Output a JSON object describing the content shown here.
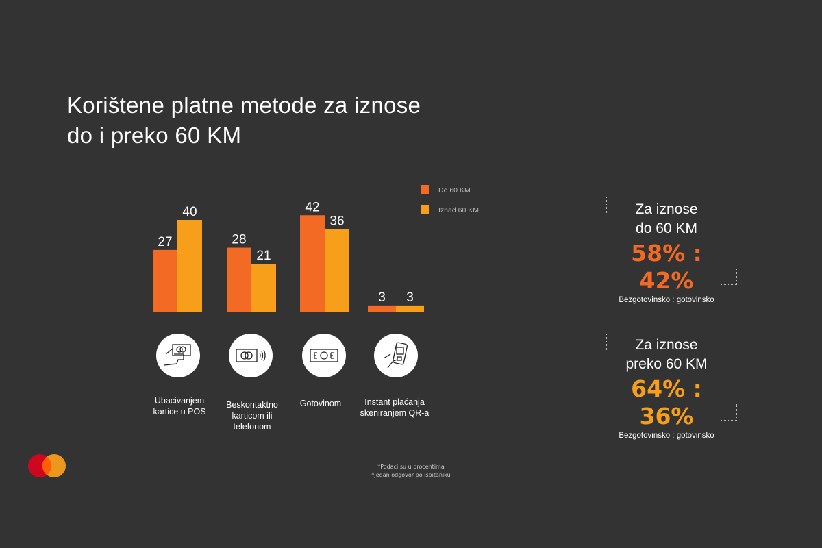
{
  "title_line1": "Korištene platne metode za iznose",
  "title_line2": "do i preko 60 KM",
  "chart_data": {
    "type": "bar",
    "categories": [
      "Ubacivanjem kartice u POS",
      "Beskontaktno karticom ili telefonom",
      "Gotovinom",
      "Instant plaćanja skeniranjem QR-a"
    ],
    "series": [
      {
        "name": "Do  60 KM",
        "values": [
          27,
          28,
          42,
          3
        ],
        "color": "#F26A24"
      },
      {
        "name": "Iznad  60 KM",
        "values": [
          40,
          21,
          36,
          3
        ],
        "color": "#F79E1B"
      }
    ],
    "ylim": [
      0,
      45
    ],
    "legend": "top-right",
    "grid": false
  },
  "labels": [
    [
      "Ubacivanjem",
      "kartice u POS"
    ],
    [
      "Beskontaktno",
      "karticom ili",
      "telefonom"
    ],
    [
      "Gotovinom"
    ],
    [
      "Instant plaćanja",
      "skeniranjem QR-a"
    ]
  ],
  "summary": [
    {
      "h1": "Za iznose",
      "h2": "do 60 KM",
      "pct": "58% : 42%",
      "sub": "Bezgotovinsko : gotovinsko",
      "color": "#F26A24"
    },
    {
      "h1": "Za iznose",
      "h2": "preko 60 KM",
      "pct": "64% : 36%",
      "sub": "Bezgotovinsko : gotovinsko",
      "color": "#F79E1B"
    }
  ],
  "notes": [
    "*Podaci su u procentima",
    "*Jedan odgovor po ispitaniku"
  ]
}
